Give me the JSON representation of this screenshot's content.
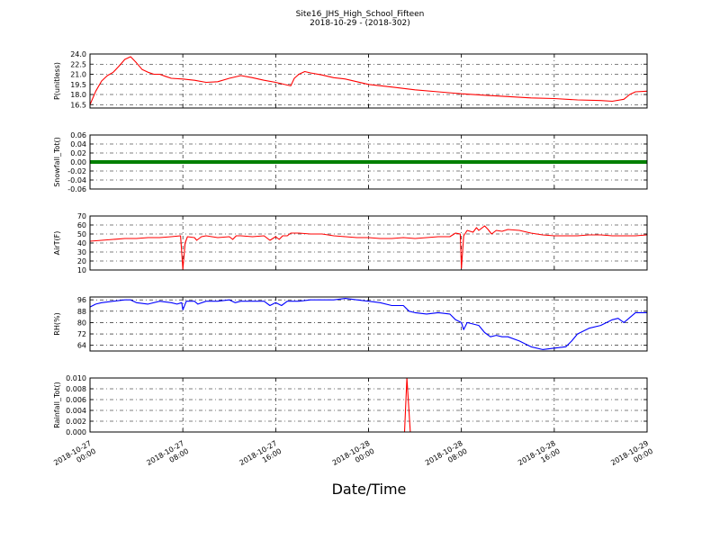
{
  "chart_title": {
    "line1": "Site16_JHS_High_School_Fifteen",
    "line2": "2018-10-29 - (2018-302)"
  },
  "xlabel": "Date/Time",
  "chart_data": {
    "type": "line",
    "title": "Site16_JHS_High_School_Fifteen 2018-10-29 - (2018-302)",
    "xlabel": "Date/Time",
    "x_range_hours": [
      0,
      48
    ],
    "x_ticks": [
      {
        "label": [
          "2018-10-27",
          "00:00"
        ],
        "hour": 0
      },
      {
        "label": [
          "2018-10-27",
          "08:00"
        ],
        "hour": 8
      },
      {
        "label": [
          "2018-10-27",
          "16:00"
        ],
        "hour": 16
      },
      {
        "label": [
          "2018-10-28",
          "00:00"
        ],
        "hour": 24
      },
      {
        "label": [
          "2018-10-28",
          "08:00"
        ],
        "hour": 32
      },
      {
        "label": [
          "2018-10-28",
          "16:00"
        ],
        "hour": 40
      },
      {
        "label": [
          "2018-10-29",
          "00:00"
        ],
        "hour": 48
      }
    ],
    "grid": true,
    "panels": [
      {
        "ylabel": "P(unitless)",
        "color": "#ff0000",
        "ylim": [
          16.0,
          24.0
        ],
        "yticks": [
          "16.5",
          "18.0",
          "19.5",
          "21.0",
          "22.5",
          "24.0"
        ],
        "yticks_values": [
          16.5,
          18.0,
          19.5,
          21.0,
          22.5,
          24.0
        ],
        "points": [
          [
            0,
            16.5
          ],
          [
            0.5,
            18.5
          ],
          [
            1,
            20.0
          ],
          [
            1.5,
            20.8
          ],
          [
            2,
            21.3
          ],
          [
            2.5,
            22.2
          ],
          [
            3,
            23.2
          ],
          [
            3.5,
            23.6
          ],
          [
            4,
            22.7
          ],
          [
            4.5,
            21.7
          ],
          [
            5,
            21.3
          ],
          [
            5.5,
            21.0
          ],
          [
            6,
            21.0
          ],
          [
            6.5,
            20.7
          ],
          [
            7,
            20.4
          ],
          [
            8,
            20.3
          ],
          [
            9,
            20.1
          ],
          [
            10,
            19.8
          ],
          [
            11,
            19.9
          ],
          [
            12,
            20.4
          ],
          [
            13,
            20.8
          ],
          [
            14,
            20.5
          ],
          [
            15,
            20.1
          ],
          [
            16,
            19.8
          ],
          [
            17,
            19.4
          ],
          [
            17.3,
            19.3
          ],
          [
            17.6,
            20.4
          ],
          [
            18,
            21.0
          ],
          [
            18.5,
            21.4
          ],
          [
            19,
            21.2
          ],
          [
            20,
            20.9
          ],
          [
            21,
            20.5
          ],
          [
            22,
            20.3
          ],
          [
            23,
            19.9
          ],
          [
            24,
            19.5
          ],
          [
            26,
            19.1
          ],
          [
            28,
            18.7
          ],
          [
            30,
            18.4
          ],
          [
            32,
            18.1
          ],
          [
            34,
            17.9
          ],
          [
            36,
            17.7
          ],
          [
            38,
            17.5
          ],
          [
            40,
            17.4
          ],
          [
            42,
            17.2
          ],
          [
            44,
            17.1
          ],
          [
            45,
            17.0
          ],
          [
            46,
            17.3
          ],
          [
            46.5,
            18.0
          ],
          [
            47,
            18.4
          ],
          [
            48,
            18.5
          ]
        ]
      },
      {
        "ylabel": "Snowfall_Tot()",
        "color": "#008000",
        "ylim": [
          -0.06,
          0.06
        ],
        "yticks": [
          "-0.06",
          "-0.04",
          "-0.02",
          "0.00",
          "0.02",
          "0.04",
          "0.06"
        ],
        "yticks_values": [
          -0.06,
          -0.04,
          -0.02,
          0.0,
          0.02,
          0.04,
          0.06
        ],
        "points": [
          [
            0,
            0
          ],
          [
            48,
            0
          ]
        ],
        "thick": true
      },
      {
        "ylabel": "AirT(F)",
        "color": "#ff0000",
        "ylim": [
          10,
          70
        ],
        "yticks": [
          "10",
          "20",
          "30",
          "40",
          "50",
          "60",
          "70"
        ],
        "yticks_values": [
          10,
          20,
          30,
          40,
          50,
          60,
          70
        ],
        "points": [
          [
            0,
            42
          ],
          [
            1,
            43
          ],
          [
            2,
            44
          ],
          [
            3,
            45
          ],
          [
            4,
            45
          ],
          [
            5,
            46
          ],
          [
            6,
            46
          ],
          [
            7,
            47
          ],
          [
            7.8,
            48
          ],
          [
            7.9,
            30
          ],
          [
            8,
            11
          ],
          [
            8.2,
            40
          ],
          [
            8.4,
            47
          ],
          [
            9,
            46
          ],
          [
            9.2,
            43
          ],
          [
            9.6,
            47
          ],
          [
            10,
            48
          ],
          [
            11,
            46
          ],
          [
            12,
            47
          ],
          [
            12.3,
            44
          ],
          [
            12.6,
            48
          ],
          [
            13,
            48
          ],
          [
            14,
            47
          ],
          [
            15,
            48
          ],
          [
            15.5,
            43
          ],
          [
            16,
            47
          ],
          [
            16.3,
            44
          ],
          [
            16.6,
            48
          ],
          [
            17,
            48
          ],
          [
            17.3,
            51
          ],
          [
            18,
            51
          ],
          [
            19,
            50
          ],
          [
            20,
            50
          ],
          [
            21,
            48
          ],
          [
            22,
            47
          ],
          [
            23,
            46
          ],
          [
            24,
            46
          ],
          [
            25,
            45
          ],
          [
            26,
            45
          ],
          [
            27,
            46
          ],
          [
            28,
            45
          ],
          [
            29,
            46
          ],
          [
            30,
            47
          ],
          [
            31,
            47
          ],
          [
            31.5,
            51
          ],
          [
            31.9,
            50
          ],
          [
            32,
            12
          ],
          [
            32.2,
            48
          ],
          [
            32.5,
            54
          ],
          [
            33,
            52
          ],
          [
            33.3,
            57
          ],
          [
            33.5,
            54
          ],
          [
            34,
            59
          ],
          [
            34.3,
            55
          ],
          [
            34.6,
            50
          ],
          [
            35,
            54
          ],
          [
            35.5,
            53
          ],
          [
            36,
            55
          ],
          [
            37,
            54
          ],
          [
            38,
            51
          ],
          [
            39,
            49
          ],
          [
            40,
            48
          ],
          [
            41,
            48
          ],
          [
            42,
            48
          ],
          [
            43,
            49
          ],
          [
            44,
            49
          ],
          [
            45,
            48
          ],
          [
            46,
            48
          ],
          [
            47,
            48
          ],
          [
            48,
            49
          ]
        ]
      },
      {
        "ylabel": "RH(%)",
        "color": "#0000ff",
        "ylim": [
          60,
          98
        ],
        "yticks": [
          "64",
          "72",
          "80",
          "88",
          "96"
        ],
        "yticks_values": [
          64,
          72,
          80,
          88,
          96
        ],
        "points": [
          [
            0,
            91
          ],
          [
            0.5,
            93
          ],
          [
            1,
            94
          ],
          [
            2,
            95
          ],
          [
            3,
            96
          ],
          [
            3.5,
            96
          ],
          [
            4,
            94
          ],
          [
            5,
            93
          ],
          [
            6,
            95
          ],
          [
            7,
            94
          ],
          [
            7.5,
            93
          ],
          [
            7.9,
            94
          ],
          [
            8,
            89
          ],
          [
            8.3,
            95
          ],
          [
            9,
            95
          ],
          [
            9.3,
            93
          ],
          [
            10,
            95
          ],
          [
            11,
            95
          ],
          [
            12,
            96
          ],
          [
            12.5,
            94
          ],
          [
            13,
            95
          ],
          [
            14,
            95
          ],
          [
            15,
            95
          ],
          [
            15.5,
            92
          ],
          [
            16,
            94
          ],
          [
            16.5,
            92
          ],
          [
            17,
            95
          ],
          [
            18,
            95
          ],
          [
            19,
            96
          ],
          [
            20,
            96
          ],
          [
            21,
            96
          ],
          [
            22,
            97
          ],
          [
            23,
            96
          ],
          [
            24,
            95
          ],
          [
            25,
            94
          ],
          [
            26,
            92
          ],
          [
            27,
            92
          ],
          [
            27.5,
            88
          ],
          [
            28,
            87
          ],
          [
            29,
            86
          ],
          [
            30,
            87
          ],
          [
            31,
            86
          ],
          [
            31.5,
            82
          ],
          [
            32,
            80
          ],
          [
            32.2,
            75
          ],
          [
            32.5,
            80
          ],
          [
            33,
            79
          ],
          [
            33.5,
            78
          ],
          [
            34,
            73
          ],
          [
            34.5,
            70
          ],
          [
            35,
            71
          ],
          [
            35.5,
            70
          ],
          [
            36,
            70
          ],
          [
            37,
            67
          ],
          [
            38,
            63
          ],
          [
            39,
            61
          ],
          [
            40,
            62
          ],
          [
            41,
            63
          ],
          [
            41.5,
            67
          ],
          [
            42,
            72
          ],
          [
            43,
            76
          ],
          [
            44,
            78
          ],
          [
            45,
            82
          ],
          [
            45.5,
            83
          ],
          [
            46,
            80
          ],
          [
            47,
            87
          ],
          [
            48,
            87
          ]
        ]
      },
      {
        "ylabel": "Rainfall_Tot()",
        "color": "#ff0000",
        "ylim": [
          0.0,
          0.01
        ],
        "yticks": [
          "0.000",
          "0.002",
          "0.004",
          "0.006",
          "0.008",
          "0.010"
        ],
        "yticks_values": [
          0.0,
          0.002,
          0.004,
          0.006,
          0.008,
          0.01
        ],
        "points": [
          [
            0,
            0
          ],
          [
            27.1,
            0
          ],
          [
            27.3,
            0.01
          ],
          [
            27.6,
            0
          ],
          [
            48,
            0
          ]
        ]
      }
    ]
  }
}
